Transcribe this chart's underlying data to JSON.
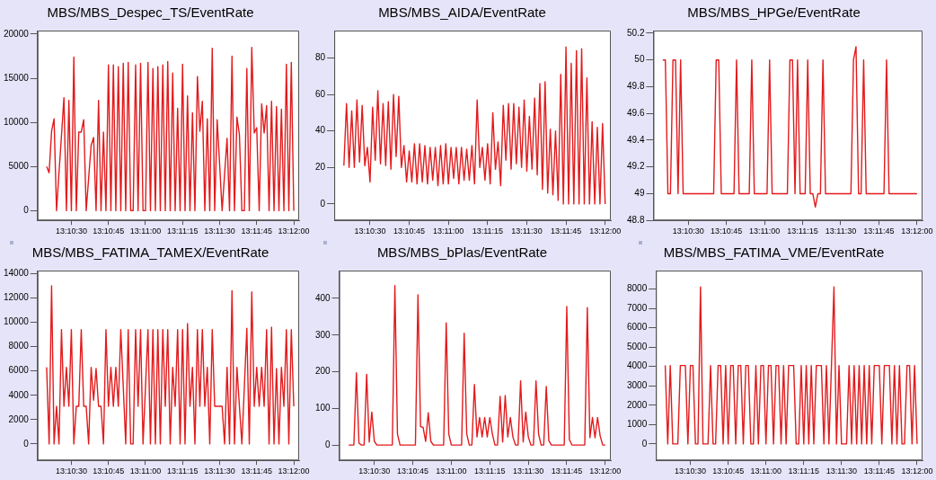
{
  "chart_data": [
    {
      "type": "line",
      "title": "MBS/MBS_Despec_TS/EventRate",
      "color": "#e31a1c",
      "x": [
        13.172222,
        13.1725,
        13.172778,
        13.173056,
        13.173333,
        13.173611,
        13.173889,
        13.174167,
        13.174444,
        13.174722,
        13.175,
        13.175278,
        13.175556,
        13.175833,
        13.176111,
        13.176389,
        13.176667,
        13.176944,
        13.177222,
        13.1775,
        13.177778,
        13.178056,
        13.178333,
        13.178611,
        13.178889,
        13.179167,
        13.179444,
        13.179722,
        13.18,
        13.180278,
        13.180556,
        13.180833,
        13.181111,
        13.181389,
        13.181667,
        13.181944,
        13.182222,
        13.1825,
        13.182778,
        13.183056,
        13.183333,
        13.183611,
        13.183889,
        13.184167,
        13.184444,
        13.184722,
        13.185,
        13.185278,
        13.185556,
        13.185833,
        13.186111,
        13.186389,
        13.186667,
        13.186944,
        13.187222,
        13.1875,
        13.187778,
        13.188056,
        13.188333,
        13.188611,
        13.188889,
        13.189167,
        13.189444,
        13.189722,
        13.19,
        13.190278,
        13.190556,
        13.190833,
        13.191111,
        13.191389,
        13.191667,
        13.191944,
        13.192222,
        13.1925,
        13.192778,
        13.193056,
        13.193333,
        13.193611,
        13.193889,
        13.194167,
        13.194444,
        13.194722,
        13.195,
        13.195278,
        13.195556,
        13.195833,
        13.196111,
        13.196389,
        13.196667,
        13.196944,
        13.197222,
        13.1975,
        13.197778,
        13.198056,
        13.198333,
        13.198611,
        13.198889,
        13.199167,
        13.199444,
        13.199722,
        13.2
      ],
      "values": [
        5000,
        4300,
        9000,
        10400,
        0,
        4300,
        8500,
        12800,
        0,
        12500,
        0,
        17400,
        0,
        8900,
        8900,
        10300,
        0,
        3700,
        7400,
        8300,
        0,
        12500,
        0,
        8900,
        0,
        16500,
        0,
        16500,
        0,
        16300,
        0,
        16700,
        0,
        16800,
        0,
        0,
        16500,
        0,
        16700,
        0,
        0,
        16800,
        0,
        16100,
        0,
        16300,
        0,
        16500,
        0,
        16900,
        0,
        15600,
        0,
        11600,
        0,
        16600,
        0,
        13000,
        0,
        11100,
        0,
        15200,
        9000,
        12400,
        0,
        10400,
        0,
        18400,
        0,
        10300,
        5200,
        0,
        4100,
        8200,
        0,
        17500,
        0,
        10600,
        8600,
        0,
        0,
        16100,
        0,
        18500,
        8800,
        9400,
        0,
        12100,
        8800,
        11900,
        0,
        12400,
        0,
        11800,
        0,
        11500,
        0,
        16600,
        0,
        16800,
        0
      ],
      "xlim": [
        13.1712,
        13.2006
      ],
      "xticks": [
        {
          "value": 13.175,
          "label": "13:10:30"
        },
        {
          "value": 13.179167,
          "label": "13:10:45"
        },
        {
          "value": 13.183333,
          "label": "13:11:00"
        },
        {
          "value": 13.1875,
          "label": "13:11:15"
        },
        {
          "value": 13.191667,
          "label": "13:11:30"
        },
        {
          "value": 13.195833,
          "label": "13:11:45"
        },
        {
          "value": 13.2,
          "label": "13:12:00"
        }
      ],
      "ylim": [
        -1100,
        20400
      ],
      "yticks": [
        0,
        5000,
        10000,
        15000,
        20000
      ]
    },
    {
      "type": "line",
      "title": "MBS/MBS_AIDA/EventRate",
      "color": "#e31a1c",
      "x": [
        13.172222,
        13.1725,
        13.172778,
        13.173056,
        13.173333,
        13.173611,
        13.173889,
        13.174167,
        13.174444,
        13.174722,
        13.175,
        13.175278,
        13.175556,
        13.175833,
        13.176111,
        13.176389,
        13.176667,
        13.176944,
        13.177222,
        13.1775,
        13.177778,
        13.178056,
        13.178333,
        13.178611,
        13.178889,
        13.179167,
        13.179444,
        13.179722,
        13.18,
        13.180278,
        13.180556,
        13.180833,
        13.181111,
        13.181389,
        13.181667,
        13.181944,
        13.182222,
        13.1825,
        13.182778,
        13.183056,
        13.183333,
        13.183611,
        13.183889,
        13.184167,
        13.184444,
        13.184722,
        13.185,
        13.185278,
        13.185556,
        13.185833,
        13.186111,
        13.186389,
        13.186667,
        13.186944,
        13.187222,
        13.1875,
        13.187778,
        13.188056,
        13.188333,
        13.188611,
        13.188889,
        13.189167,
        13.189444,
        13.189722,
        13.19,
        13.190278,
        13.190556,
        13.190833,
        13.191111,
        13.191389,
        13.191667,
        13.191944,
        13.192222,
        13.1925,
        13.192778,
        13.193056,
        13.193333,
        13.193611,
        13.193889,
        13.194167,
        13.194444,
        13.194722,
        13.195,
        13.195278,
        13.195556,
        13.195833,
        13.196111,
        13.196389,
        13.196667,
        13.196944,
        13.197222,
        13.1975,
        13.197778,
        13.198056,
        13.198333,
        13.198611,
        13.198889,
        13.199167,
        13.199444,
        13.199722,
        13.2
      ],
      "values": [
        21,
        55,
        20,
        51,
        20,
        57,
        23,
        54,
        21,
        31,
        12,
        53,
        24,
        62,
        22,
        55,
        21,
        56,
        19,
        60,
        26,
        59,
        20,
        32,
        12,
        29,
        12,
        33,
        11,
        33,
        12,
        32,
        11,
        31,
        13,
        31,
        10,
        32,
        11,
        33,
        11,
        31,
        14,
        31,
        11,
        31,
        13,
        30,
        13,
        32,
        11,
        57,
        20,
        31,
        13,
        33,
        11,
        50,
        19,
        34,
        10,
        54,
        24,
        55,
        19,
        55,
        22,
        53,
        20,
        57,
        18,
        48,
        19,
        58,
        16,
        66,
        8,
        67,
        6,
        41,
        5,
        40,
        2,
        71,
        0,
        86,
        0,
        77,
        0,
        84,
        0,
        85,
        0,
        69,
        0,
        45,
        0,
        42,
        0,
        44,
        0
      ],
      "xlim": [
        13.1712,
        13.2006
      ],
      "xticks": [
        {
          "value": 13.175,
          "label": "13:10:30"
        },
        {
          "value": 13.179167,
          "label": "13:10:45"
        },
        {
          "value": 13.183333,
          "label": "13:11:00"
        },
        {
          "value": 13.1875,
          "label": "13:11:15"
        },
        {
          "value": 13.191667,
          "label": "13:11:30"
        },
        {
          "value": 13.195833,
          "label": "13:11:45"
        },
        {
          "value": 13.2,
          "label": "13:12:00"
        }
      ],
      "ylim": [
        -9,
        95
      ],
      "yticks": [
        0,
        20,
        40,
        60,
        80
      ]
    },
    {
      "type": "line",
      "title": "MBS/MBS_HPGe/EventRate",
      "color": "#e31a1c",
      "x": [
        13.172222,
        13.1725,
        13.172778,
        13.173056,
        13.173333,
        13.173611,
        13.173889,
        13.174167,
        13.174444,
        13.174722,
        13.175,
        13.175278,
        13.175556,
        13.175833,
        13.176111,
        13.176389,
        13.176667,
        13.176944,
        13.177222,
        13.1775,
        13.177778,
        13.178056,
        13.178333,
        13.178611,
        13.178889,
        13.179167,
        13.179444,
        13.179722,
        13.18,
        13.180278,
        13.180556,
        13.180833,
        13.181111,
        13.181389,
        13.181667,
        13.181944,
        13.182222,
        13.1825,
        13.182778,
        13.183056,
        13.183333,
        13.183611,
        13.183889,
        13.184167,
        13.184444,
        13.184722,
        13.185,
        13.185278,
        13.185556,
        13.185833,
        13.186111,
        13.186389,
        13.186667,
        13.186944,
        13.187222,
        13.1875,
        13.187778,
        13.188056,
        13.188333,
        13.188611,
        13.188889,
        13.189167,
        13.189444,
        13.189722,
        13.19,
        13.190278,
        13.190556,
        13.190833,
        13.191111,
        13.191389,
        13.191667,
        13.191944,
        13.192222,
        13.1925,
        13.192778,
        13.193056,
        13.193333,
        13.193611,
        13.193889,
        13.194167,
        13.194444,
        13.194722,
        13.195,
        13.195278,
        13.195556,
        13.195833,
        13.196111,
        13.196389,
        13.196667,
        13.196944,
        13.197222,
        13.1975,
        13.197778,
        13.198056,
        13.198333,
        13.198611,
        13.198889,
        13.199167,
        13.199444,
        13.199722,
        13.2
      ],
      "values": [
        50,
        50,
        49,
        49,
        50,
        50,
        49,
        50,
        49,
        49,
        49,
        49,
        49,
        49,
        49,
        49,
        49,
        49,
        49,
        49,
        49,
        50,
        50,
        49,
        49,
        49,
        49,
        49,
        49,
        50,
        49,
        49,
        49,
        49,
        49,
        50,
        49,
        49,
        49,
        49,
        49,
        49,
        50,
        49,
        49,
        49,
        49,
        49,
        49,
        49,
        50,
        50,
        49,
        50,
        49,
        49,
        49,
        50,
        49,
        49,
        48.9,
        49,
        49,
        50,
        49,
        49,
        49,
        49,
        49,
        49,
        49,
        49,
        49,
        49,
        49,
        50,
        50.1,
        49,
        49,
        50,
        49,
        49,
        49,
        49,
        49,
        49,
        49,
        49,
        50,
        49,
        49,
        49,
        49,
        49,
        49,
        49,
        49,
        49,
        49,
        49,
        49
      ],
      "xlim": [
        13.1712,
        13.2006
      ],
      "xticks": [
        {
          "value": 13.175,
          "label": "13:10:30"
        },
        {
          "value": 13.179167,
          "label": "13:10:45"
        },
        {
          "value": 13.183333,
          "label": "13:11:00"
        },
        {
          "value": 13.1875,
          "label": "13:11:15"
        },
        {
          "value": 13.191667,
          "label": "13:11:30"
        },
        {
          "value": 13.195833,
          "label": "13:11:45"
        },
        {
          "value": 13.2,
          "label": "13:12:00"
        }
      ],
      "ylim": [
        48.8,
        50.22
      ],
      "yticks": [
        48.8,
        49,
        49.2,
        49.4,
        49.6,
        49.8,
        50,
        50.2
      ]
    },
    {
      "type": "line",
      "title": "MBS/MBS_FATIMA_TAMEX/EventRate",
      "color": "#e31a1c",
      "x": [
        13.172222,
        13.1725,
        13.172778,
        13.173056,
        13.173333,
        13.173611,
        13.173889,
        13.174167,
        13.174444,
        13.174722,
        13.175,
        13.175278,
        13.175556,
        13.175833,
        13.176111,
        13.176389,
        13.176667,
        13.176944,
        13.177222,
        13.1775,
        13.177778,
        13.178056,
        13.178333,
        13.178611,
        13.178889,
        13.179167,
        13.179444,
        13.179722,
        13.18,
        13.180278,
        13.180556,
        13.180833,
        13.181111,
        13.181389,
        13.181667,
        13.181944,
        13.182222,
        13.1825,
        13.182778,
        13.183056,
        13.183333,
        13.183611,
        13.183889,
        13.184167,
        13.184444,
        13.184722,
        13.185,
        13.185278,
        13.185556,
        13.185833,
        13.186111,
        13.186389,
        13.186667,
        13.186944,
        13.187222,
        13.1875,
        13.187778,
        13.188056,
        13.188333,
        13.188611,
        13.188889,
        13.189167,
        13.189444,
        13.189722,
        13.19,
        13.190278,
        13.190556,
        13.190833,
        13.191111,
        13.191389,
        13.191667,
        13.191944,
        13.192222,
        13.1925,
        13.192778,
        13.193056,
        13.193333,
        13.193611,
        13.193889,
        13.194167,
        13.194444,
        13.194722,
        13.195,
        13.195278,
        13.195556,
        13.195833,
        13.196111,
        13.196389,
        13.196667,
        13.196944,
        13.197222,
        13.1975,
        13.197778,
        13.198056,
        13.198333,
        13.198611,
        13.198889,
        13.199167,
        13.199444,
        13.199722,
        13.2
      ],
      "values": [
        6300,
        0,
        13000,
        0,
        3100,
        0,
        9400,
        3100,
        6300,
        3100,
        9400,
        0,
        3100,
        3100,
        9400,
        3100,
        3100,
        0,
        6300,
        3600,
        6200,
        3100,
        3100,
        0,
        9400,
        3100,
        6300,
        3100,
        6300,
        3100,
        9400,
        4700,
        0,
        9400,
        0,
        0,
        9400,
        3100,
        9400,
        0,
        4700,
        9400,
        0,
        9400,
        0,
        9400,
        0,
        9400,
        3100,
        9400,
        0,
        6300,
        3100,
        9400,
        0,
        9400,
        0,
        9900,
        3100,
        6300,
        0,
        9400,
        3100,
        9400,
        3100,
        6300,
        0,
        9400,
        3100,
        3100,
        3100,
        3100,
        0,
        6300,
        0,
        12600,
        0,
        6300,
        3100,
        0,
        4700,
        9500,
        0,
        12500,
        3100,
        6300,
        3100,
        6300,
        3100,
        9400,
        0,
        9600,
        0,
        6200,
        0,
        6300,
        3100,
        9400,
        0,
        9400,
        3100
      ],
      "xlim": [
        13.1712,
        13.2006
      ],
      "xticks": [
        {
          "value": 13.175,
          "label": "13:10:30"
        },
        {
          "value": 13.179167,
          "label": "13:10:45"
        },
        {
          "value": 13.183333,
          "label": "13:11:00"
        },
        {
          "value": 13.1875,
          "label": "13:11:15"
        },
        {
          "value": 13.191667,
          "label": "13:11:30"
        },
        {
          "value": 13.195833,
          "label": "13:11:45"
        },
        {
          "value": 13.2,
          "label": "13:12:00"
        }
      ],
      "ylim": [
        -1350,
        14250
      ],
      "yticks": [
        0,
        2000,
        4000,
        6000,
        8000,
        10000,
        12000,
        14000
      ]
    },
    {
      "type": "line",
      "title": "MBS/MBS_bPlas/EventRate",
      "color": "#e31a1c",
      "x": [
        13.172222,
        13.1725,
        13.172778,
        13.173056,
        13.173333,
        13.173611,
        13.173889,
        13.174167,
        13.174444,
        13.174722,
        13.175,
        13.175278,
        13.175556,
        13.175833,
        13.176111,
        13.176389,
        13.176667,
        13.176944,
        13.177222,
        13.1775,
        13.177778,
        13.178056,
        13.178333,
        13.178611,
        13.178889,
        13.179167,
        13.179444,
        13.179722,
        13.18,
        13.180278,
        13.180556,
        13.180833,
        13.181111,
        13.181389,
        13.181667,
        13.181944,
        13.182222,
        13.1825,
        13.182778,
        13.183056,
        13.183333,
        13.183611,
        13.183889,
        13.184167,
        13.184444,
        13.184722,
        13.185,
        13.185278,
        13.185556,
        13.185833,
        13.186111,
        13.186389,
        13.186667,
        13.186944,
        13.187222,
        13.1875,
        13.187778,
        13.188056,
        13.188333,
        13.188611,
        13.188889,
        13.189167,
        13.189444,
        13.189722,
        13.19,
        13.190278,
        13.190556,
        13.190833,
        13.191111,
        13.191389,
        13.191667,
        13.191944,
        13.192222,
        13.1925,
        13.192778,
        13.193056,
        13.193333,
        13.193611,
        13.193889,
        13.194167,
        13.194444,
        13.194722,
        13.195,
        13.195278,
        13.195556,
        13.195833,
        13.196111,
        13.196389,
        13.196667,
        13.196944,
        13.197222,
        13.1975,
        13.197778,
        13.198056,
        13.198333,
        13.198611,
        13.198889,
        13.199167,
        13.199444,
        13.199722,
        13.2
      ],
      "values": [
        0,
        0,
        0,
        197,
        5,
        0,
        0,
        193,
        8,
        90,
        10,
        0,
        0,
        0,
        0,
        0,
        0,
        0,
        435,
        30,
        0,
        0,
        0,
        0,
        0,
        0,
        0,
        410,
        50,
        48,
        10,
        88,
        10,
        0,
        0,
        0,
        0,
        0,
        333,
        30,
        0,
        0,
        0,
        0,
        0,
        305,
        30,
        0,
        0,
        165,
        22,
        75,
        22,
        75,
        22,
        75,
        30,
        0,
        0,
        133,
        8,
        135,
        22,
        75,
        22,
        0,
        0,
        175,
        8,
        90,
        22,
        0,
        0,
        175,
        30,
        0,
        0,
        160,
        12,
        0,
        0,
        0,
        0,
        0,
        0,
        378,
        15,
        0,
        0,
        0,
        0,
        0,
        0,
        375,
        20,
        75,
        20,
        75,
        25,
        0,
        0
      ],
      "xlim": [
        13.1712,
        13.2006
      ],
      "xticks": [
        {
          "value": 13.175,
          "label": "13:10:30"
        },
        {
          "value": 13.179167,
          "label": "13:10:45"
        },
        {
          "value": 13.183333,
          "label": "13:11:00"
        },
        {
          "value": 13.1875,
          "label": "13:11:15"
        },
        {
          "value": 13.191667,
          "label": "13:11:30"
        },
        {
          "value": 13.195833,
          "label": "13:11:45"
        },
        {
          "value": 13.2,
          "label": "13:12:00"
        }
      ],
      "ylim": [
        -42,
        476
      ],
      "yticks": [
        0,
        100,
        200,
        300,
        400
      ]
    },
    {
      "type": "line",
      "title": "MBS/MBS_FATIMA_VME/EventRate",
      "color": "#e31a1c",
      "x": [
        13.172222,
        13.1725,
        13.172778,
        13.173056,
        13.173333,
        13.173611,
        13.173889,
        13.174167,
        13.174444,
        13.174722,
        13.175,
        13.175278,
        13.175556,
        13.175833,
        13.176111,
        13.176389,
        13.176667,
        13.176944,
        13.177222,
        13.1775,
        13.177778,
        13.178056,
        13.178333,
        13.178611,
        13.178889,
        13.179167,
        13.179444,
        13.179722,
        13.18,
        13.180278,
        13.180556,
        13.180833,
        13.181111,
        13.181389,
        13.181667,
        13.181944,
        13.182222,
        13.1825,
        13.182778,
        13.183056,
        13.183333,
        13.183611,
        13.183889,
        13.184167,
        13.184444,
        13.184722,
        13.185,
        13.185278,
        13.185556,
        13.185833,
        13.186111,
        13.186389,
        13.186667,
        13.186944,
        13.187222,
        13.1875,
        13.187778,
        13.188056,
        13.188333,
        13.188611,
        13.188889,
        13.189167,
        13.189444,
        13.189722,
        13.19,
        13.190278,
        13.190556,
        13.190833,
        13.191111,
        13.191389,
        13.191667,
        13.191944,
        13.192222,
        13.1925,
        13.192778,
        13.193056,
        13.193333,
        13.193611,
        13.193889,
        13.194167,
        13.194444,
        13.194722,
        13.195,
        13.195278,
        13.195556,
        13.195833,
        13.196111,
        13.196389,
        13.196667,
        13.196944,
        13.197222,
        13.1975,
        13.197778,
        13.198056,
        13.198333,
        13.198611,
        13.198889,
        13.199167,
        13.199444,
        13.199722,
        13.2
      ],
      "values": [
        4050,
        0,
        4050,
        0,
        0,
        0,
        4050,
        4050,
        4050,
        0,
        4050,
        4050,
        0,
        0,
        8100,
        0,
        0,
        0,
        4050,
        0,
        0,
        4050,
        4050,
        0,
        4050,
        0,
        4050,
        4050,
        0,
        4050,
        4050,
        0,
        4050,
        4050,
        0,
        0,
        4050,
        0,
        4050,
        4050,
        0,
        4050,
        4050,
        0,
        4050,
        4050,
        0,
        4050,
        0,
        4050,
        4050,
        4050,
        0,
        0,
        4050,
        0,
        4050,
        0,
        4050,
        0,
        4050,
        4050,
        4050,
        0,
        4050,
        0,
        4050,
        8100,
        0,
        4050,
        0,
        0,
        0,
        4050,
        0,
        4050,
        0,
        4050,
        0,
        4050,
        0,
        4050,
        0,
        4050,
        4050,
        4050,
        0,
        4050,
        4050,
        4050,
        0,
        4050,
        0,
        4050,
        0,
        0,
        4050,
        4050,
        0,
        4050,
        0
      ],
      "xlim": [
        13.1712,
        13.2006
      ],
      "xticks": [
        {
          "value": 13.175,
          "label": "13:10:30"
        },
        {
          "value": 13.179167,
          "label": "13:10:45"
        },
        {
          "value": 13.183333,
          "label": "13:11:00"
        },
        {
          "value": 13.1875,
          "label": "13:11:15"
        },
        {
          "value": 13.191667,
          "label": "13:11:30"
        },
        {
          "value": 13.195833,
          "label": "13:11:45"
        },
        {
          "value": 13.2,
          "label": "13:12:00"
        }
      ],
      "ylim": [
        -850,
        8950
      ],
      "yticks": [
        0,
        1000,
        2000,
        3000,
        4000,
        5000,
        6000,
        7000,
        8000
      ]
    }
  ]
}
